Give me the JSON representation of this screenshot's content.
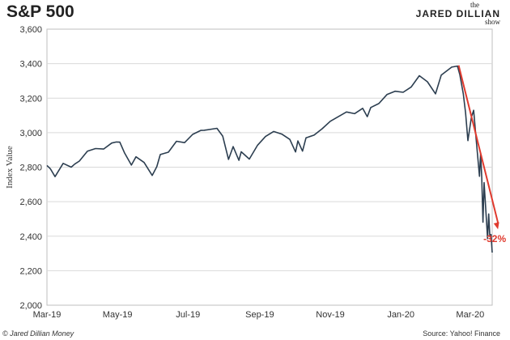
{
  "chart_data": {
    "type": "line",
    "title": "S&P 500",
    "ylabel": "Index Value",
    "xlabel": "",
    "ylim": [
      2000,
      3600
    ],
    "yticks": [
      2000,
      2200,
      2400,
      2600,
      2800,
      3000,
      3200,
      3400,
      3600
    ],
    "ytick_labels": [
      "2,000",
      "2,200",
      "2,400",
      "2,600",
      "2,800",
      "3,000",
      "3,200",
      "3,400",
      "3,600"
    ],
    "xlim": [
      "2019-03-01",
      "2020-03-20"
    ],
    "xticks": [
      "2019-03-01",
      "2019-05-01",
      "2019-07-01",
      "2019-09-01",
      "2019-11-01",
      "2020-01-01",
      "2020-03-01"
    ],
    "xtick_labels": [
      "Mar-19",
      "May-19",
      "Jul-19",
      "Sep-19",
      "Nov-19",
      "Jan-20",
      "Mar-20"
    ],
    "grid": "horizontal",
    "line_color": "#2c3e50",
    "series": [
      {
        "x": [
          "2019-03-01",
          "2019-03-04",
          "2019-03-08",
          "2019-03-15",
          "2019-03-22",
          "2019-03-25",
          "2019-03-29",
          "2019-04-05",
          "2019-04-12",
          "2019-04-19",
          "2019-04-26",
          "2019-04-30",
          "2019-05-03",
          "2019-05-07",
          "2019-05-13",
          "2019-05-17",
          "2019-05-24",
          "2019-05-31",
          "2019-06-04",
          "2019-06-07",
          "2019-06-14",
          "2019-06-21",
          "2019-06-28",
          "2019-07-05",
          "2019-07-12",
          "2019-07-15",
          "2019-07-26",
          "2019-07-31",
          "2019-08-05",
          "2019-08-09",
          "2019-08-14",
          "2019-08-16",
          "2019-08-23",
          "2019-08-30",
          "2019-09-06",
          "2019-09-13",
          "2019-09-20",
          "2019-09-27",
          "2019-10-02",
          "2019-10-04",
          "2019-10-08",
          "2019-10-11",
          "2019-10-18",
          "2019-10-25",
          "2019-11-01",
          "2019-11-08",
          "2019-11-15",
          "2019-11-22",
          "2019-11-29",
          "2019-12-03",
          "2019-12-06",
          "2019-12-13",
          "2019-12-20",
          "2019-12-27",
          "2020-01-03",
          "2020-01-10",
          "2020-01-17",
          "2020-01-24",
          "2020-01-31",
          "2020-02-05",
          "2020-02-14",
          "2020-02-19",
          "2020-02-21",
          "2020-02-24",
          "2020-02-26",
          "2020-02-28",
          "2020-03-02",
          "2020-03-04",
          "2020-03-06",
          "2020-03-09",
          "2020-03-10",
          "2020-03-11",
          "2020-03-12",
          "2020-03-13",
          "2020-03-16",
          "2020-03-17",
          "2020-03-18",
          "2020-03-19",
          "2020-03-20"
        ],
        "y": [
          2810,
          2790,
          2745,
          2822,
          2800,
          2818,
          2835,
          2893,
          2908,
          2905,
          2940,
          2946,
          2945,
          2884,
          2812,
          2860,
          2827,
          2752,
          2803,
          2873,
          2887,
          2950,
          2942,
          2990,
          3013,
          3014,
          3025,
          2980,
          2845,
          2919,
          2840,
          2889,
          2847,
          2926,
          2978,
          3007,
          2992,
          2961,
          2888,
          2952,
          2893,
          2970,
          2986,
          3023,
          3066,
          3093,
          3120,
          3110,
          3141,
          3093,
          3146,
          3169,
          3221,
          3240,
          3234,
          3265,
          3330,
          3295,
          3225,
          3334,
          3380,
          3386,
          3337,
          3225,
          3116,
          2954,
          3090,
          3130,
          2972,
          2747,
          2882,
          2741,
          2481,
          2711,
          2386,
          2529,
          2398,
          2409,
          2305
        ]
      }
    ],
    "annotation": {
      "text": "-32%",
      "color": "#e03a2e",
      "from": [
        "2020-02-20",
        3390
      ],
      "to": [
        "2020-03-25",
        2440
      ]
    }
  },
  "header": {
    "title": "S&P 500",
    "logo_the": "the",
    "logo_name": "JARED DILLIAN",
    "logo_show": "show"
  },
  "footer": {
    "left": "© Jared Dillian Money",
    "right": "Source: Yahoo! Finance"
  }
}
